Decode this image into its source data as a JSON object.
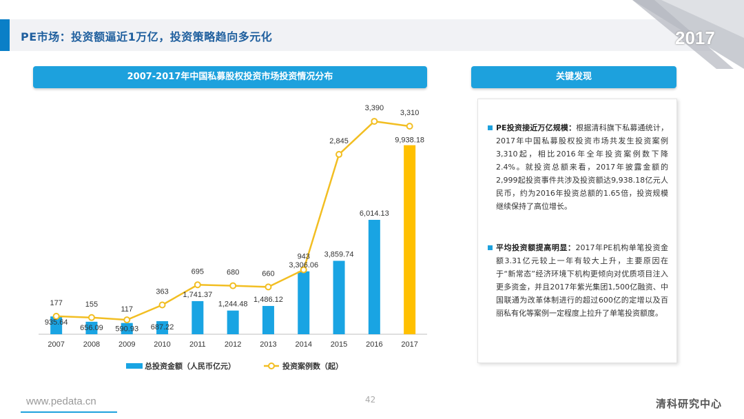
{
  "header": {
    "title": "PE市场：投资额逼近1万亿，投资策略趋向多元化",
    "year": "2017"
  },
  "chart_panel": {
    "title": "2007-2017年中国私募股权投资市场投资情况分布"
  },
  "findings_panel": {
    "title": "关键发现",
    "items": [
      {
        "lead": "PE投资接近万亿规模：",
        "body": "根据清科旗下私募通统计，2017年中国私募股权投资市场共发生投资案例3,310起，相比2016年全年投资案例数下降2.4%。就投资总额来看，2017年披露金额的2,999起投资事件共涉及投资额达9,938.18亿元人民币，约为2016年投资总额的1.65倍，投资规模继续保持了高位增长。"
      },
      {
        "lead": "平均投资额提高明显：",
        "body": "2017年PE机构单笔投资金额3.31亿元较上一年有较大上升，主要原因在于“新常态”经济环境下机构更倾向对优质项目注入更多资金，并且2017年紫光集团1,500亿融资、中国联通为改革体制进行的超过600亿的定增以及百丽私有化等案例一定程度上拉升了单笔投资额度。"
      }
    ]
  },
  "chart_data": {
    "type": "bar",
    "categories": [
      "2007",
      "2008",
      "2009",
      "2010",
      "2011",
      "2012",
      "2013",
      "2014",
      "2015",
      "2016",
      "2017"
    ],
    "series": [
      {
        "name": "总投资金额（人民币亿元）",
        "type": "bar",
        "values": [
          935.64,
          656.09,
          590.93,
          687.22,
          1741.37,
          1244.48,
          1486.12,
          3306.06,
          3859.74,
          6014.13,
          9938.18
        ],
        "labels": [
          "935.64",
          "656.09",
          "590.93",
          "687.22",
          "1,741.37",
          "1,244.48",
          "1,486.12",
          "3,306.06",
          "3,859.74",
          "6,014.13",
          "9,938.18"
        ],
        "color": "#19a4e3",
        "highlight_color": "#ffc000"
      },
      {
        "name": "投资案例数（起）",
        "type": "line",
        "values": [
          177,
          155,
          117,
          363,
          695,
          680,
          660,
          943,
          2845,
          3390,
          3310
        ],
        "labels": [
          "177",
          "155",
          "117",
          "363",
          "695",
          "680",
          "660",
          "943",
          "2,845",
          "3,390",
          "3,310"
        ],
        "color": "#f2be22"
      }
    ],
    "bar_ylim": [
      0,
      12500
    ],
    "line_ylim": [
      -120,
      3800
    ]
  },
  "footer": {
    "url": "www.pedata.cn",
    "page": "42",
    "brand": "清科研究中心"
  }
}
